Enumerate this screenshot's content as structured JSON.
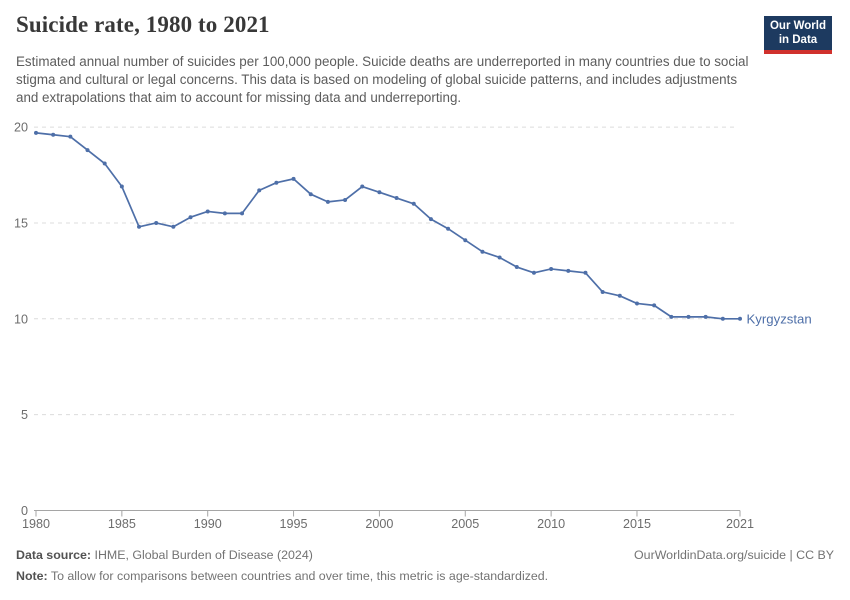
{
  "header": {
    "title": "Suicide rate, 1980 to 2021",
    "subtitle": "Estimated annual number of suicides per 100,000 people. Suicide deaths are underreported in many countries due to social stigma and cultural or legal concerns. This data is based on modeling of global suicide patterns, and includes adjustments and extrapolations that aim to account for missing data and underreporting.",
    "logo": {
      "line1": "Our World",
      "line2": "in Data",
      "bg_color": "#1d3a60",
      "bar_color": "#d0312d"
    }
  },
  "chart_data": {
    "type": "line",
    "title": "Suicide rate, 1980 to 2021",
    "xlabel": "",
    "ylabel": "",
    "x": [
      1980,
      1981,
      1982,
      1983,
      1984,
      1985,
      1986,
      1987,
      1988,
      1989,
      1990,
      1991,
      1992,
      1993,
      1994,
      1995,
      1996,
      1997,
      1998,
      1999,
      2000,
      2001,
      2002,
      2003,
      2004,
      2005,
      2006,
      2007,
      2008,
      2009,
      2010,
      2011,
      2012,
      2013,
      2014,
      2015,
      2016,
      2017,
      2018,
      2019,
      2020,
      2021
    ],
    "series": [
      {
        "name": "Kyrgyzstan",
        "color": "#4e6fa8",
        "values": [
          19.7,
          19.6,
          19.5,
          18.8,
          18.1,
          16.9,
          14.8,
          15.0,
          14.8,
          15.3,
          15.6,
          15.5,
          15.5,
          16.7,
          17.1,
          17.3,
          16.5,
          16.1,
          16.2,
          16.9,
          16.6,
          16.3,
          16.0,
          15.2,
          14.7,
          14.1,
          13.5,
          13.2,
          12.7,
          12.4,
          12.6,
          12.5,
          12.4,
          11.4,
          11.2,
          10.8,
          10.7,
          10.1,
          10.1,
          10.1,
          10.0,
          10.0
        ]
      }
    ],
    "xticks": [
      1980,
      1985,
      1990,
      1995,
      2000,
      2005,
      2010,
      2015,
      2021
    ],
    "yticks": [
      0,
      5,
      10,
      15,
      20
    ],
    "xlim": [
      1980,
      2021
    ],
    "ylim": [
      0,
      20
    ],
    "grid": "horizontal-dashed",
    "legend": "inline-end-label"
  },
  "footer": {
    "source_label": "Data source:",
    "source_value": "IHME, Global Burden of Disease (2024)",
    "link": "OurWorldinData.org/suicide | CC BY",
    "note_label": "Note:",
    "note_value": "To allow for comparisons between countries and over time, this metric is age-standardized."
  }
}
